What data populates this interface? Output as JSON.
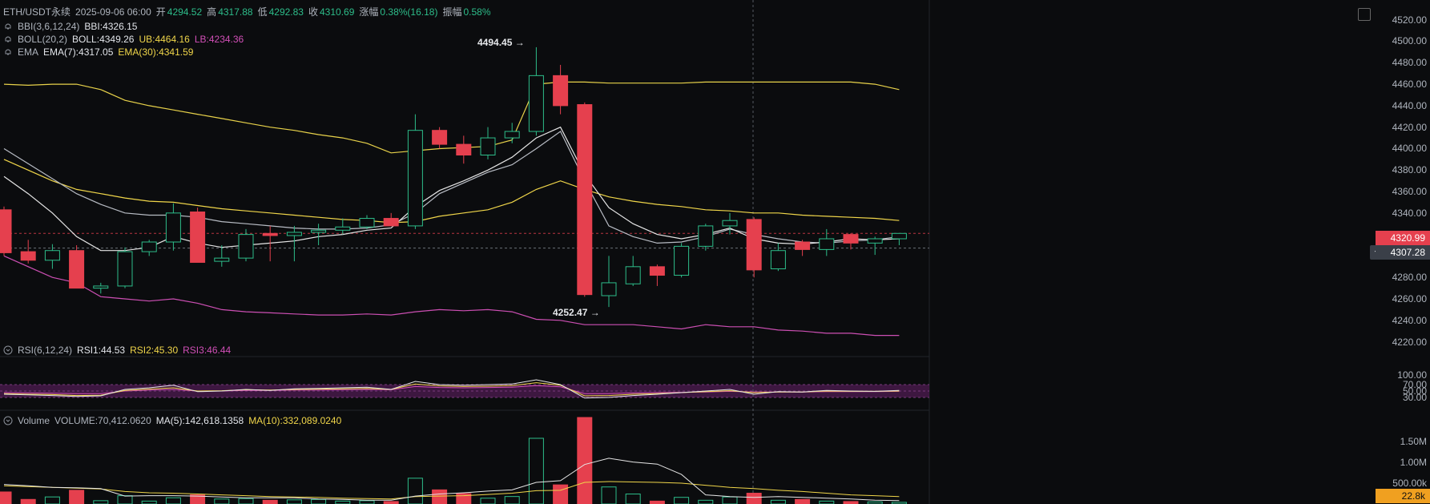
{
  "header": {
    "symbol": "ETH/USDT永续",
    "datetime": "2025-09-06 06:00",
    "open_label": "开",
    "open": "4294.52",
    "high_label": "高",
    "high": "4317.88",
    "low_label": "低",
    "low": "4292.83",
    "close_label": "收",
    "close": "4310.69",
    "change_label": "涨幅",
    "change": "0.38%(16.18)",
    "amp_label": "振幅",
    "amp": "0.58%"
  },
  "indicators": {
    "bbi": {
      "name": "BBI(3,6,12,24)",
      "value": "BBI:4326.15"
    },
    "boll": {
      "name": "BOLL(20,2)",
      "mid": "BOLL:4349.26",
      "ub": "UB:4464.16",
      "lb": "LB:4234.36"
    },
    "ema": {
      "name": "EMA",
      "ema7": "EMA(7):4317.05",
      "ema30": "EMA(30):4341.59"
    },
    "rsi": {
      "name": "RSI(6,12,24)",
      "rsi1": "RSI1:44.53",
      "rsi2": "RSI2:45.30",
      "rsi3": "RSI3:46.44"
    },
    "volume": {
      "name": "Volume",
      "vol": "VOLUME:70,412.0620",
      "ma5": "MA(5):142,618.1358",
      "ma10": "MA(10):332,089.0240"
    }
  },
  "annotations": {
    "high": "4494.45 →",
    "low": "4252.47 →"
  },
  "price_axis": [
    "4520.00",
    "4500.00",
    "4480.00",
    "4460.00",
    "4440.00",
    "4420.00",
    "4400.00",
    "4380.00",
    "4360.00",
    "4340.00",
    "4320.00",
    "4300.00",
    "4280.00",
    "4260.00",
    "4240.00",
    "4220.00"
  ],
  "rsi_axis": [
    "100.00",
    "70.00",
    "50.00",
    "30.00"
  ],
  "volume_axis": [
    "1.50M",
    "1.00M",
    "500.00k"
  ],
  "tags": {
    "last_price": "4320.99",
    "cross_price": "4307.28",
    "volume": "22.8k"
  },
  "colors": {
    "up": "#2dbd8a",
    "down": "#e5404e",
    "ema7": "#e6e6e6",
    "ema30": "#f0d64a",
    "ub": "#e8d24a",
    "lb": "#cc4fb3",
    "rsi_band": "#4a1a4e"
  },
  "chart_data": {
    "type": "candlestick",
    "price_range": [
      4210,
      4525
    ],
    "candles": [
      {
        "o": 4343,
        "h": 4346,
        "l": 4300,
        "c": 4303
      },
      {
        "o": 4304,
        "h": 4315,
        "l": 4293,
        "c": 4296
      },
      {
        "o": 4296,
        "h": 4311,
        "l": 4288,
        "c": 4305
      },
      {
        "o": 4305,
        "h": 4310,
        "l": 4270,
        "c": 4270
      },
      {
        "o": 4270,
        "h": 4275,
        "l": 4265,
        "c": 4272
      },
      {
        "o": 4272,
        "h": 4308,
        "l": 4270,
        "c": 4304
      },
      {
        "o": 4304,
        "h": 4315,
        "l": 4300,
        "c": 4313
      },
      {
        "o": 4313,
        "h": 4349,
        "l": 4305,
        "c": 4340
      },
      {
        "o": 4341,
        "h": 4345,
        "l": 4294,
        "c": 4294
      },
      {
        "o": 4295,
        "h": 4310,
        "l": 4290,
        "c": 4298
      },
      {
        "o": 4298,
        "h": 4325,
        "l": 4295,
        "c": 4320
      },
      {
        "o": 4321,
        "h": 4328,
        "l": 4295,
        "c": 4319
      },
      {
        "o": 4319,
        "h": 4328,
        "l": 4295,
        "c": 4322
      },
      {
        "o": 4322,
        "h": 4330,
        "l": 4310,
        "c": 4324
      },
      {
        "o": 4324,
        "h": 4335,
        "l": 4320,
        "c": 4327
      },
      {
        "o": 4327,
        "h": 4338,
        "l": 4325,
        "c": 4335
      },
      {
        "o": 4335,
        "h": 4340,
        "l": 4330,
        "c": 4328
      },
      {
        "o": 4328,
        "h": 4432,
        "l": 4325,
        "c": 4417
      },
      {
        "o": 4417,
        "h": 4420,
        "l": 4400,
        "c": 4404
      },
      {
        "o": 4404,
        "h": 4412,
        "l": 4386,
        "c": 4394
      },
      {
        "o": 4394,
        "h": 4420,
        "l": 4390,
        "c": 4410
      },
      {
        "o": 4410,
        "h": 4424,
        "l": 4405,
        "c": 4416
      },
      {
        "o": 4416,
        "h": 4494.45,
        "l": 4412,
        "c": 4468
      },
      {
        "o": 4468,
        "h": 4478,
        "l": 4432,
        "c": 4440
      },
      {
        "o": 4441,
        "h": 4443,
        "l": 4262,
        "c": 4264
      },
      {
        "o": 4263,
        "h": 4300,
        "l": 4252.47,
        "c": 4275
      },
      {
        "o": 4274,
        "h": 4300,
        "l": 4272,
        "c": 4290
      },
      {
        "o": 4290,
        "h": 4292,
        "l": 4272,
        "c": 4282
      },
      {
        "o": 4282,
        "h": 4312,
        "l": 4280,
        "c": 4309
      },
      {
        "o": 4309,
        "h": 4330,
        "l": 4305,
        "c": 4328
      },
      {
        "o": 4328,
        "h": 4340,
        "l": 4320,
        "c": 4333
      },
      {
        "o": 4334,
        "h": 4336,
        "l": 4280,
        "c": 4287
      },
      {
        "o": 4288,
        "h": 4312,
        "l": 4286,
        "c": 4305
      },
      {
        "o": 4313,
        "h": 4315,
        "l": 4300,
        "c": 4306
      },
      {
        "o": 4306,
        "h": 4325,
        "l": 4300,
        "c": 4316
      },
      {
        "o": 4320,
        "h": 4321,
        "l": 4306,
        "c": 4312
      },
      {
        "o": 4312,
        "h": 4318,
        "l": 4301,
        "c": 4316
      },
      {
        "o": 4316,
        "h": 4320,
        "l": 4310,
        "c": 4321
      }
    ],
    "ub_line": [
      4460,
      4459,
      4460,
      4460,
      4455,
      4445,
      4440,
      4436,
      4432,
      4428,
      4424,
      4420,
      4417,
      4413,
      4410,
      4405,
      4396,
      4398,
      4400,
      4401,
      4402,
      4408,
      4460,
      4462,
      4462,
      4461,
      4461,
      4461,
      4461,
      4462,
      4462,
      4462,
      4462,
      4462,
      4462,
      4462,
      4460,
      4455
    ],
    "lb_line": [
      4300,
      4290,
      4280,
      4275,
      4262,
      4260,
      4258,
      4260,
      4256,
      4250,
      4248,
      4247,
      4246,
      4245,
      4245,
      4246,
      4245,
      4248,
      4250,
      4249,
      4250,
      4248,
      4241,
      4240,
      4236,
      4236,
      4236,
      4234,
      4232,
      4236,
      4234,
      4234,
      4231,
      4230,
      4228,
      4228,
      4226,
      4226
    ],
    "ema30_line": [
      4390,
      4380,
      4370,
      4362,
      4358,
      4354,
      4351,
      4350,
      4347,
      4344,
      4342,
      4340,
      4338,
      4336,
      4334,
      4333,
      4331,
      4332,
      4337,
      4340,
      4343,
      4350,
      4362,
      4370,
      4362,
      4355,
      4351,
      4348,
      4346,
      4343,
      4342,
      4340,
      4340,
      4338,
      4337,
      4336,
      4335,
      4333
    ],
    "bbi_line": [
      4400,
      4386,
      4372,
      4358,
      4348,
      4340,
      4338,
      4338,
      4336,
      4332,
      4330,
      4328,
      4326,
      4325,
      4325,
      4326,
      4329,
      4340,
      4358,
      4368,
      4378,
      4385,
      4400,
      4416,
      4370,
      4328,
      4318,
      4312,
      4313,
      4318,
      4325,
      4320,
      4316,
      4313,
      4312,
      4314,
      4315,
      4318
    ],
    "ema7_line": [
      4374,
      4358,
      4340,
      4318,
      4305,
      4305,
      4308,
      4318,
      4312,
      4308,
      4310,
      4312,
      4314,
      4318,
      4320,
      4324,
      4326,
      4346,
      4361,
      4370,
      4380,
      4392,
      4410,
      4420,
      4376,
      4345,
      4330,
      4320,
      4316,
      4320,
      4326,
      4316,
      4312,
      4311,
      4313,
      4316,
      4315,
      4316
    ],
    "rsi_lines": {
      "rsi1": [
        40,
        38,
        36,
        33,
        35,
        55,
        60,
        68,
        48,
        50,
        55,
        52,
        57,
        58,
        60,
        62,
        55,
        80,
        70,
        68,
        70,
        72,
        85,
        70,
        28,
        30,
        36,
        40,
        45,
        50,
        55,
        40,
        48,
        47,
        52,
        50,
        49,
        52
      ],
      "rsi2": [
        42,
        40,
        39,
        36,
        37,
        52,
        56,
        60,
        50,
        51,
        54,
        53,
        55,
        56,
        57,
        58,
        55,
        72,
        66,
        64,
        65,
        67,
        76,
        68,
        35,
        36,
        40,
        42,
        45,
        48,
        51,
        45,
        47,
        47,
        50,
        49,
        49,
        50
      ],
      "rsi3": [
        45,
        44,
        43,
        42,
        42,
        50,
        53,
        55,
        50,
        50,
        52,
        52,
        53,
        53,
        54,
        55,
        54,
        64,
        61,
        60,
        61,
        62,
        67,
        63,
        42,
        42,
        44,
        45,
        46,
        47,
        49,
        47,
        47,
        47,
        48,
        48,
        48,
        49
      ]
    },
    "volume_bars": [
      290,
      110,
      170,
      330,
      80,
      200,
      70,
      150,
      220,
      120,
      130,
      90,
      100,
      110,
      70,
      80,
      60,
      620,
      340,
      250,
      140,
      180,
      1580,
      460,
      2080,
      410,
      240,
      70,
      160,
      90,
      170,
      260,
      90,
      110,
      70,
      60,
      50,
      40
    ],
    "volume_range": [
      0,
      2100
    ],
    "vol_ma5": [
      470,
      440,
      400,
      390,
      370,
      190,
      200,
      200,
      190,
      170,
      150,
      150,
      150,
      120,
      110,
      90,
      90,
      190,
      240,
      270,
      310,
      340,
      520,
      560,
      950,
      1100,
      1010,
      960,
      710,
      220,
      180,
      160,
      180,
      160,
      140,
      120,
      90,
      80
    ],
    "vol_ma10": [
      440,
      420,
      400,
      380,
      360,
      300,
      270,
      260,
      240,
      220,
      200,
      180,
      170,
      160,
      140,
      130,
      120,
      180,
      190,
      200,
      230,
      260,
      320,
      330,
      520,
      540,
      530,
      520,
      500,
      450,
      400,
      370,
      330,
      300,
      260,
      220,
      200,
      180
    ]
  }
}
